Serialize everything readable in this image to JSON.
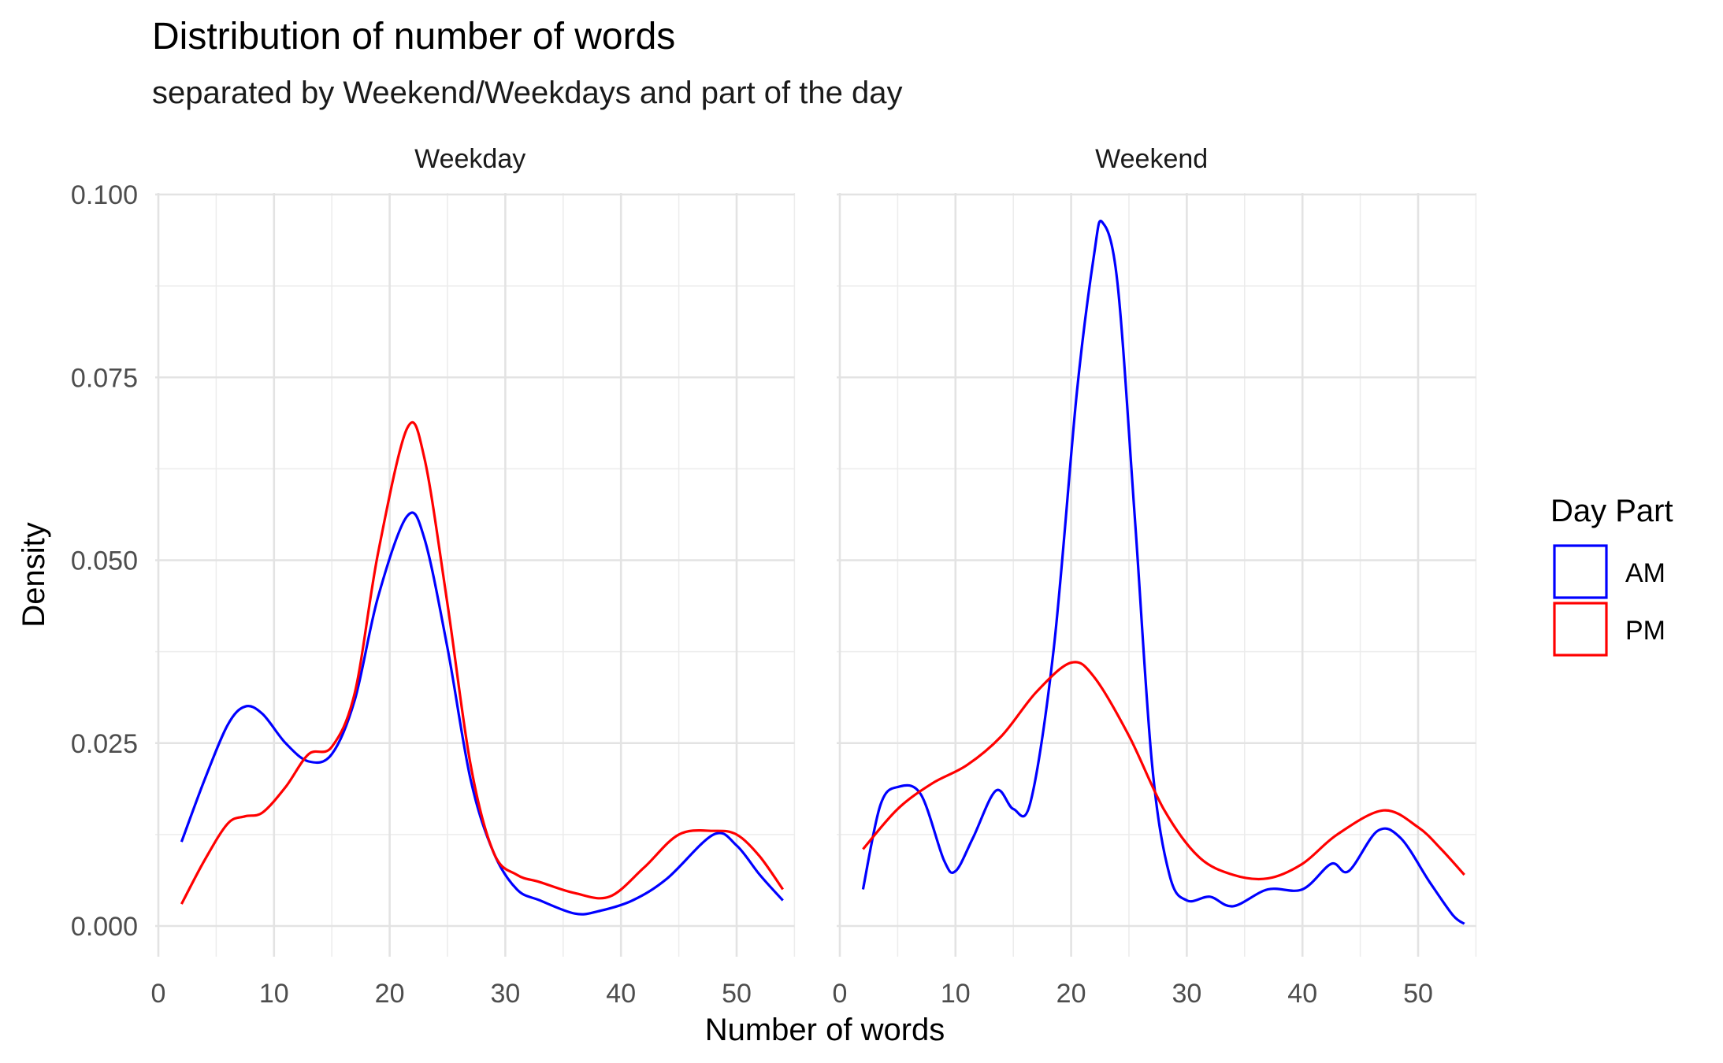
{
  "chart_data": {
    "type": "line",
    "title": "Distribution of number of words",
    "subtitle": "separated by Weekend/Weekdays and part of the day",
    "xlabel": "Number of words",
    "ylabel": "Density",
    "xlim": [
      0,
      55
    ],
    "ylim": [
      0,
      0.1
    ],
    "x_ticks": [
      0,
      10,
      20,
      30,
      40,
      50
    ],
    "x_tick_labels": [
      "0",
      "10",
      "20",
      "30",
      "40",
      "50"
    ],
    "y_ticks": [
      0,
      0.025,
      0.05,
      0.075,
      0.1
    ],
    "y_tick_labels": [
      "0.000",
      "0.025",
      "0.050",
      "0.075",
      "0.100"
    ],
    "grid": true,
    "legend": {
      "title": "Day Part",
      "position": "right",
      "entries": [
        {
          "label": "AM",
          "color": "#0000ff"
        },
        {
          "label": "PM",
          "color": "#ff0000"
        }
      ]
    },
    "facets": [
      {
        "label": "Weekday",
        "series": [
          {
            "name": "AM",
            "color": "#0000ff",
            "points": [
              [
                2,
                0.0115
              ],
              [
                4,
                0.02
              ],
              [
                6,
                0.0275
              ],
              [
                7.5,
                0.03
              ],
              [
                9,
                0.029
              ],
              [
                11,
                0.025
              ],
              [
                13,
                0.0225
              ],
              [
                15,
                0.0235
              ],
              [
                17,
                0.031
              ],
              [
                19,
                0.045
              ],
              [
                21.5,
                0.056
              ],
              [
                23,
                0.053
              ],
              [
                25,
                0.038
              ],
              [
                27,
                0.02
              ],
              [
                29,
                0.01
              ],
              [
                31,
                0.005
              ],
              [
                33,
                0.0035
              ],
              [
                36,
                0.0017
              ],
              [
                38,
                0.002
              ],
              [
                41,
                0.0035
              ],
              [
                44,
                0.0065
              ],
              [
                48,
                0.0125
              ],
              [
                50,
                0.011
              ],
              [
                52,
                0.007
              ],
              [
                54,
                0.0035
              ]
            ]
          },
          {
            "name": "PM",
            "color": "#ff0000",
            "points": [
              [
                2,
                0.003
              ],
              [
                4,
                0.009
              ],
              [
                6,
                0.014
              ],
              [
                7.5,
                0.015
              ],
              [
                9,
                0.0155
              ],
              [
                11,
                0.019
              ],
              [
                13,
                0.0235
              ],
              [
                15,
                0.0245
              ],
              [
                17,
                0.032
              ],
              [
                19,
                0.051
              ],
              [
                21.5,
                0.068
              ],
              [
                23,
                0.064
              ],
              [
                25,
                0.044
              ],
              [
                27,
                0.022
              ],
              [
                29,
                0.01
              ],
              [
                31,
                0.007
              ],
              [
                33,
                0.006
              ],
              [
                36,
                0.0045
              ],
              [
                39,
                0.004
              ],
              [
                42,
                0.008
              ],
              [
                45,
                0.0125
              ],
              [
                48,
                0.013
              ],
              [
                50,
                0.0125
              ],
              [
                52,
                0.0095
              ],
              [
                54,
                0.005
              ]
            ]
          }
        ]
      },
      {
        "label": "Weekend",
        "series": [
          {
            "name": "AM",
            "color": "#0000ff",
            "points": [
              [
                2,
                0.005
              ],
              [
                3.5,
                0.0165
              ],
              [
                5,
                0.019
              ],
              [
                7,
                0.018
              ],
              [
                9,
                0.009
              ],
              [
                10,
                0.0075
              ],
              [
                11.5,
                0.012
              ],
              [
                13.5,
                0.0185
              ],
              [
                15,
                0.016
              ],
              [
                16.5,
                0.017
              ],
              [
                18.5,
                0.038
              ],
              [
                20.5,
                0.073
              ],
              [
                22,
                0.092
              ],
              [
                22.7,
                0.0962
              ],
              [
                24,
                0.088
              ],
              [
                25.5,
                0.056
              ],
              [
                27,
                0.022
              ],
              [
                28.5,
                0.007
              ],
              [
                30,
                0.0035
              ],
              [
                32,
                0.004
              ],
              [
                34,
                0.0027
              ],
              [
                37,
                0.005
              ],
              [
                40,
                0.005
              ],
              [
                42.5,
                0.0085
              ],
              [
                44,
                0.0075
              ],
              [
                46.5,
                0.013
              ],
              [
                48.5,
                0.012
              ],
              [
                51,
                0.006
              ],
              [
                53,
                0.0015
              ],
              [
                54,
                0.0003
              ]
            ]
          },
          {
            "name": "PM",
            "color": "#ff0000",
            "points": [
              [
                2,
                0.0105
              ],
              [
                5,
                0.016
              ],
              [
                8,
                0.0195
              ],
              [
                11,
                0.022
              ],
              [
                14,
                0.026
              ],
              [
                17,
                0.032
              ],
              [
                20,
                0.036
              ],
              [
                22,
                0.034
              ],
              [
                25,
                0.026
              ],
              [
                28,
                0.016
              ],
              [
                31,
                0.0095
              ],
              [
                34,
                0.007
              ],
              [
                37,
                0.0065
              ],
              [
                40,
                0.0085
              ],
              [
                43,
                0.0125
              ],
              [
                47,
                0.0158
              ],
              [
                50,
                0.0135
              ],
              [
                52,
                0.0105
              ],
              [
                54,
                0.007
              ]
            ]
          }
        ]
      }
    ]
  }
}
